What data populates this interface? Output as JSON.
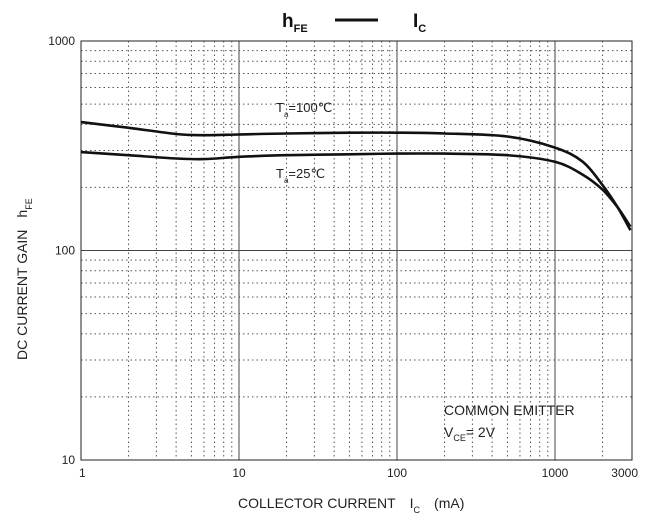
{
  "chart_data": {
    "type": "line",
    "title": {
      "main": "h",
      "main_sub": "FE",
      "right": "I",
      "right_sub": "C"
    },
    "xlabel": {
      "text": "COLLECTOR CURRENT",
      "symbol": "I",
      "symbol_sub": "C",
      "unit": "(mA)"
    },
    "ylabel": {
      "text": "DC CURRENT GAIN",
      "symbol": "h",
      "symbol_sub": "FE"
    },
    "x_scale": "log",
    "y_scale": "log",
    "xlim": [
      1,
      3000
    ],
    "ylim": [
      10,
      1000
    ],
    "x_ticks": [
      {
        "value": 1,
        "label": "1"
      },
      {
        "value": 10,
        "label": "10"
      },
      {
        "value": 100,
        "label": "100"
      },
      {
        "value": 1000,
        "label": "1000"
      },
      {
        "value": 3000,
        "label": "3000"
      }
    ],
    "y_ticks": [
      {
        "value": 10,
        "label": "10"
      },
      {
        "value": 100,
        "label": "100"
      },
      {
        "value": 1000,
        "label": "1000"
      }
    ],
    "grid": true,
    "series": [
      {
        "name": "Ta=100℃",
        "label_main": "T",
        "label_sub": "a",
        "label_rest": "=100℃",
        "x": [
          1,
          2,
          4,
          6,
          10,
          20,
          50,
          100,
          200,
          500,
          1000,
          1500,
          2000,
          2500,
          3000
        ],
        "y": [
          410,
          385,
          360,
          355,
          358,
          362,
          365,
          365,
          362,
          350,
          310,
          265,
          205,
          160,
          125
        ]
      },
      {
        "name": "Ta=25℃",
        "label_main": "T",
        "label_sub": "a",
        "label_rest": "=25℃",
        "x": [
          1,
          2,
          4,
          6,
          10,
          20,
          50,
          100,
          200,
          500,
          1000,
          1500,
          2000,
          2500,
          3000
        ],
        "y": [
          295,
          285,
          275,
          273,
          280,
          285,
          288,
          290,
          290,
          285,
          265,
          230,
          195,
          160,
          130
        ]
      }
    ],
    "annotation": {
      "line1": "COMMON EMITTER",
      "line2_main": "V",
      "line2_sub": "CE",
      "line2_rest": "= 2V"
    }
  }
}
